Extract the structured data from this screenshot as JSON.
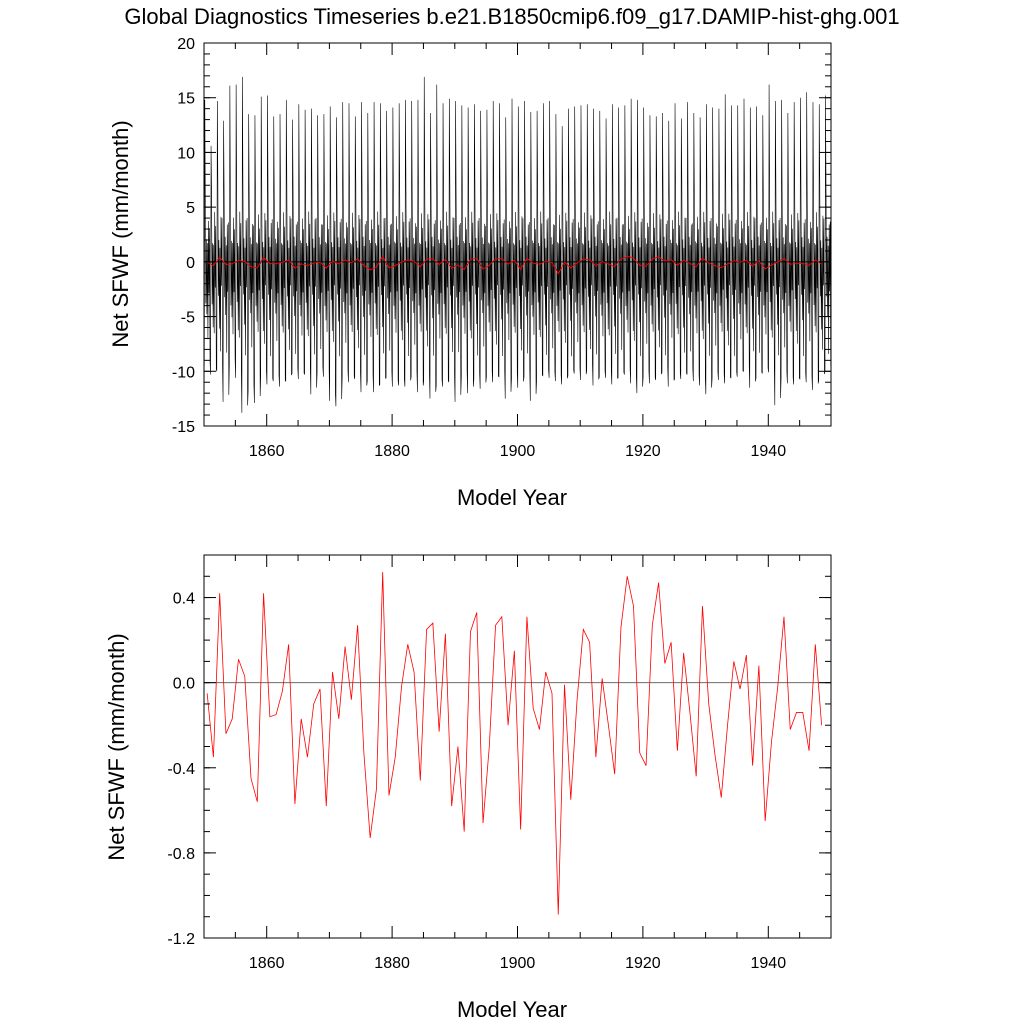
{
  "title": "Global Diagnostics Timeseries b.e21.B1850cmip6.f09_g17.DAMIP-hist-ghg.001",
  "colors": {
    "monthly": "#000000",
    "annual": "#ff0000",
    "zero_line": "#000000"
  },
  "chart_data": [
    {
      "type": "line",
      "xlabel": "Model Year",
      "ylabel": "Net SFWF (mm/month)",
      "xlim": [
        1850,
        1950
      ],
      "ylim": [
        -15,
        20
      ],
      "x_ticks": [
        "1860",
        "1880",
        "1900",
        "1920",
        "1940"
      ],
      "y_ticks": [
        "20",
        "15",
        "10",
        "5",
        "0",
        "-5",
        "-10",
        "-15"
      ],
      "grid": false,
      "reference_line_y": 0,
      "series": [
        {
          "color": "#000000",
          "resolution": "monthly",
          "x_start": 1850,
          "annual_cycle_template": [
            -9.5,
            14.5,
            6.5,
            -3.5,
            2.0,
            -5.5,
            1.5,
            -7.5,
            4.0,
            -2.5,
            3.5,
            -9.0
          ],
          "annual_peaks_max": [
            14.8,
            10.6,
            14.7,
            12.9,
            16.1,
            16.2,
            16.9,
            13.5,
            13.4,
            15.1,
            15.2,
            13.3,
            13.5,
            14.8,
            13.0,
            14.4,
            13.9,
            14.0,
            13.4,
            13.5,
            14.2,
            13.2,
            14.6,
            14.5,
            13.3,
            14.6,
            13.6,
            14.6,
            14.5,
            13.8,
            14.1,
            14.5,
            14.8,
            14.7,
            14.8,
            16.9,
            13.6,
            16.2,
            14.5,
            14.9,
            14.7,
            14.3,
            14.1,
            14.4,
            13.8,
            13.9,
            14.7,
            14.5,
            13.2,
            14.9,
            14.2,
            14.7,
            13.7,
            13.8,
            14.5,
            14.7,
            13.5,
            12.4,
            14.0,
            14.2,
            14.3,
            14.4,
            14.0,
            13.8,
            13.1,
            14.4,
            14.1,
            14.3,
            14.9,
            14.8,
            14.1,
            13.4,
            13.3,
            13.6,
            12.9,
            14.5,
            13.1,
            14.6,
            13.6,
            13.2,
            14.4,
            14.1,
            14.0,
            15.3,
            14.3,
            14.3,
            14.9,
            14.1,
            14.2,
            13.4,
            16.2,
            14.7,
            14.8,
            13.6,
            14.6,
            15.0,
            15.5,
            14.6,
            14.4,
            15.2
          ],
          "annual_troughs_min": [
            -9.5,
            -10.3,
            -10.0,
            -12.8,
            -9.3,
            -10.6,
            -13.8,
            -11.8,
            -12.9,
            -10.5,
            -11.2,
            -10.9,
            -11.4,
            -10.9,
            -10.2,
            -10.7,
            -10.3,
            -12.1,
            -10.1,
            -10.5,
            -12.7,
            -13.2,
            -10.5,
            -11.0,
            -10.7,
            -11.9,
            -10.9,
            -11.9,
            -11.2,
            -10.6,
            -11.4,
            -11.3,
            -11.4,
            -10.5,
            -11.9,
            -10.9,
            -12.5,
            -11.3,
            -11.4,
            -11.0,
            -12.8,
            -10.5,
            -12.0,
            -10.7,
            -11.6,
            -10.5,
            -11.0,
            -10.5,
            -12.5,
            -10.7,
            -11.5,
            -10.5,
            -12.7,
            -10.9,
            -10.4,
            -10.6,
            -10.9,
            -11.2,
            -10.4,
            -10.2,
            -10.8,
            -9.9,
            -11.3,
            -10.5,
            -10.6,
            -11.2,
            -10.6,
            -10.3,
            -11.1,
            -12.0,
            -10.5,
            -11.1,
            -10.8,
            -10.1,
            -11.4,
            -10.7,
            -10.7,
            -10.3,
            -10.9,
            -11.3,
            -12.1,
            -10.6,
            -10.8,
            -11.1,
            -10.6,
            -10.5,
            -10.0,
            -11.5,
            -10.6,
            -10.2,
            -10.1,
            -13.1,
            -10.6,
            -11.1,
            -11.2,
            -10.7,
            -11.0,
            -11.7,
            -10.8,
            -10.0
          ]
        },
        {
          "color": "#ff0000",
          "resolution": "annual",
          "x_start": 1850.5,
          "step": 1,
          "values": [
            -0.05,
            -0.35,
            0.42,
            -0.24,
            -0.17,
            0.11,
            0.03,
            -0.45,
            -0.56,
            0.42,
            -0.16,
            -0.15,
            -0.04,
            0.18,
            -0.57,
            -0.17,
            -0.35,
            -0.1,
            -0.03,
            -0.58,
            0.05,
            -0.17,
            0.17,
            -0.08,
            0.27,
            -0.33,
            -0.73,
            -0.5,
            0.52,
            -0.53,
            -0.35,
            -0.02,
            0.18,
            0.05,
            -0.46,
            0.25,
            0.28,
            -0.23,
            0.23,
            -0.58,
            -0.3,
            -0.7,
            0.24,
            0.33,
            -0.66,
            -0.3,
            0.27,
            0.31,
            -0.2,
            0.15,
            -0.69,
            0.31,
            -0.12,
            -0.22,
            0.05,
            -0.05,
            -1.09,
            -0.01,
            -0.55,
            -0.08,
            0.25,
            0.19,
            -0.35,
            0.02,
            -0.2,
            -0.43,
            0.26,
            0.5,
            0.36,
            -0.33,
            -0.39,
            0.27,
            0.47,
            0.09,
            0.19,
            -0.32,
            0.14,
            -0.14,
            -0.44,
            0.36,
            -0.1,
            -0.34,
            -0.54,
            -0.2,
            0.1,
            -0.03,
            0.13,
            -0.39,
            0.08,
            -0.65,
            -0.28,
            -0.02,
            0.31,
            -0.22,
            -0.14,
            -0.14,
            -0.32,
            0.18,
            -0.2
          ]
        }
      ]
    },
    {
      "type": "line",
      "xlabel": "Model Year",
      "ylabel": "Net SFWF (mm/month)",
      "xlim": [
        1850,
        1950
      ],
      "ylim": [
        -1.2,
        0.6
      ],
      "x_ticks": [
        "1860",
        "1880",
        "1900",
        "1920",
        "1940"
      ],
      "y_ticks": [
        "0.4",
        "0.0",
        "-0.4",
        "-0.8",
        "-1.2"
      ],
      "grid": false,
      "reference_line_y": 0,
      "series": [
        {
          "color": "#ff0000",
          "resolution": "annual",
          "x_start": 1850.5,
          "step": 1,
          "same_as": "chart_data.0.series.1"
        }
      ]
    }
  ]
}
